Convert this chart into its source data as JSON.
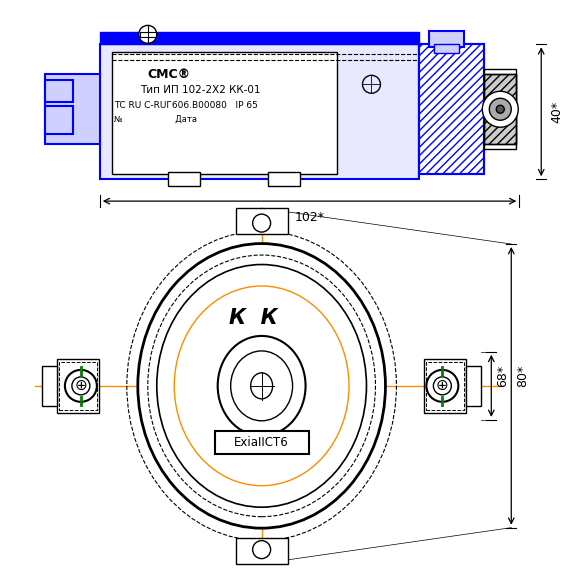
{
  "bg_color": "#ffffff",
  "blue": "#0000ff",
  "black": "#000000",
  "orange": "#ff8c00",
  "green": "#008000",
  "gray": "#808080",
  "label_102": "102*",
  "label_40": "40*",
  "label_68": "68*",
  "label_80": "80*",
  "label_kk": "К  К",
  "label_exia": "ExiaIICT6",
  "label_type": "Тип ИП 102-2Х2 КК-01",
  "label_tc": "ТС RU С-RUГ606.В00080   IP 65",
  "label_n": "№                    Дата",
  "label_cnc": "СМС®"
}
